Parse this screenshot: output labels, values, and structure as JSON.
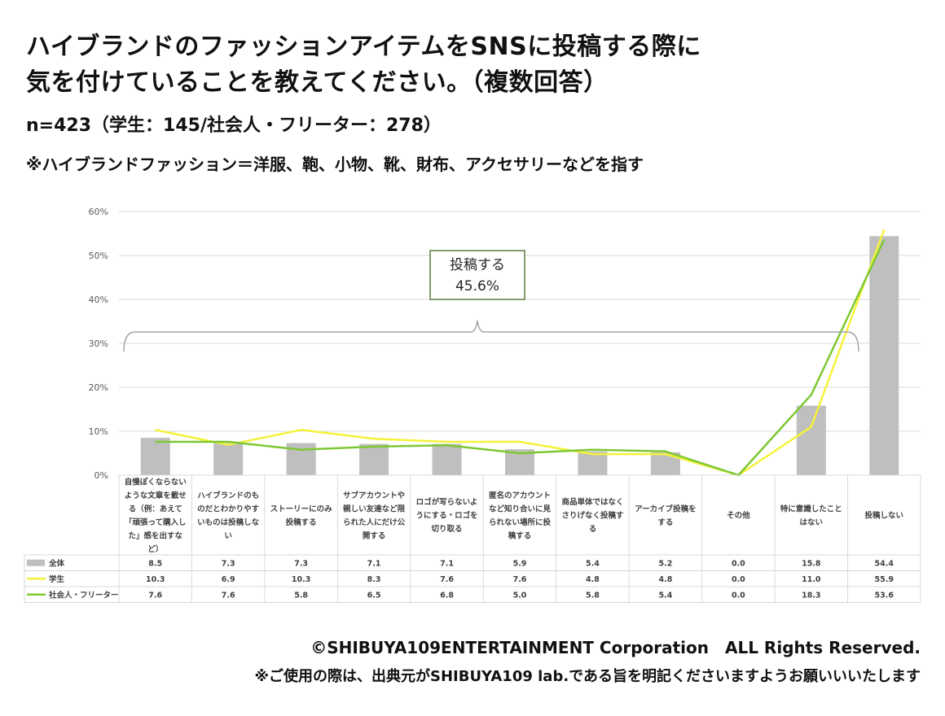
{
  "title_line1": "ハイブランドのファッションアイテムをSNSに投稿する際に",
  "title_line2": "気を付けていることを教えてください。（複数回答）",
  "sample": "n=423（学生：145/社会人・フリーター：278）",
  "note": "※ハイブランドファッション＝洋服、鞄、小物、靴、財布、アクセサリーなどを指す",
  "footer_copyright": "©SHIBUYA109ENTERTAINMENT Corporation　ALL Rights Reserved.",
  "footer_notice": "※ご使用の際は、出典元がSHIBUYA109 lab.である旨を明記くださいますようお願いいいたします",
  "chart_data": {
    "type": "bar",
    "categories": [
      [
        "自慢ぽくならない",
        "ような文章を載せ",
        "る（例：あえて",
        "「頑張って購入し",
        "た」感を出すな",
        "ど）"
      ],
      [
        "ハイブランドのも",
        "のだとわかりやす",
        "いものは投稿しな",
        "い"
      ],
      [
        "ストーリーにのみ",
        "投稿する"
      ],
      [
        "サブアカウントや",
        "親しい友達など限",
        "られた人にだけ公",
        "開する"
      ],
      [
        "ロゴが写らないよ",
        "うにする・ロゴを",
        "切り取る"
      ],
      [
        "匿名のアカウント",
        "など知り合いに見",
        "られない場所に投",
        "稿する"
      ],
      [
        "商品単体ではなく",
        "さりげなく投稿す",
        "る"
      ],
      [
        "アーカイブ投稿を",
        "する"
      ],
      [
        "その他"
      ],
      [
        "特に意識したこと",
        "はない"
      ],
      [
        "投稿しない"
      ]
    ],
    "series": [
      {
        "name": "全体",
        "kind": "bar",
        "color": "#bfbfbf",
        "values": [
          8.5,
          7.3,
          7.3,
          7.1,
          7.1,
          5.9,
          5.4,
          5.2,
          0.0,
          15.8,
          54.4
        ]
      },
      {
        "name": "学生",
        "kind": "line",
        "color": "#f5f23a",
        "values": [
          10.3,
          6.9,
          10.3,
          8.3,
          7.6,
          7.6,
          4.8,
          4.8,
          0.0,
          11.0,
          55.9
        ]
      },
      {
        "name": "社会人・フリーター",
        "kind": "line",
        "color": "#7dc832",
        "values": [
          7.6,
          7.6,
          5.8,
          6.5,
          6.8,
          5.0,
          5.8,
          5.4,
          0.0,
          18.3,
          53.6
        ]
      }
    ],
    "ylim": [
      0,
      60
    ],
    "yticks": [
      "0%",
      "10%",
      "20%",
      "30%",
      "40%",
      "50%",
      "60%"
    ],
    "table_values": [
      [
        "8.5",
        "7.3",
        "7.3",
        "7.1",
        "7.1",
        "5.9",
        "5.4",
        "5.2",
        "0.0",
        "15.8",
        "54.4"
      ],
      [
        "10.3",
        "6.9",
        "10.3",
        "8.3",
        "7.6",
        "7.6",
        "4.8",
        "4.8",
        "0.0",
        "11.0",
        "55.9"
      ],
      [
        "7.6",
        "7.6",
        "5.8",
        "6.5",
        "6.8",
        "5.0",
        "5.8",
        "5.4",
        "0.0",
        "18.3",
        "53.6"
      ]
    ],
    "annotation": {
      "label": "投稿する",
      "value": "45.6%"
    },
    "grid": true
  }
}
